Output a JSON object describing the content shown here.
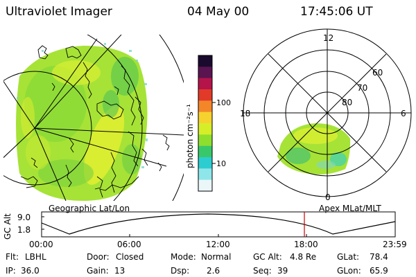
{
  "header": {
    "instrument": "Ultraviolet Imager",
    "date": "04 May 00",
    "time": "17:45:06 UT"
  },
  "left_panel": {
    "label": "Geographic Lat/Lon"
  },
  "right_panel": {
    "label": "Apex MLat/MLT",
    "mlt_labels": [
      "12",
      "18",
      "6",
      "0"
    ],
    "mlat_labels": [
      "60",
      "70",
      "80"
    ]
  },
  "colorbar": {
    "unit_label": "photon cm⁻²s⁻¹",
    "tick_100": "100",
    "tick_10": "10",
    "colors": [
      "#1a0a2e",
      "#5a1450",
      "#b4144a",
      "#e23a28",
      "#f4862a",
      "#f6d22e",
      "#d6ee28",
      "#8ede2e",
      "#38c86a",
      "#2ccdd0",
      "#8fe6ea",
      "#eaf6f8"
    ]
  },
  "altitude_plot": {
    "ylabel": "GC Alt",
    "y_ticks": [
      "9.0",
      "1.8"
    ],
    "x_ticks": [
      "00:00",
      "06:00",
      "12:00",
      "18:00",
      "23:59"
    ],
    "current_time_marker_color": "#cc0000"
  },
  "status": {
    "row1": [
      {
        "label": "Flt:",
        "value": "LBHL"
      },
      {
        "label": "Door:",
        "value": "Closed"
      },
      {
        "label": "Mode:",
        "value": "Normal"
      },
      {
        "label": "GC Alt:",
        "value": "4.8 Re"
      },
      {
        "label": "GLat:",
        "value": "78.4"
      }
    ],
    "row2": [
      {
        "label": "IP:",
        "value": "36.0"
      },
      {
        "label": "Gain:",
        "value": "13"
      },
      {
        "label": "Dsp:",
        "value": "2.6"
      },
      {
        "label": "Seq:",
        "value": "39"
      },
      {
        "label": "GLon:",
        "value": "65.9"
      }
    ]
  }
}
